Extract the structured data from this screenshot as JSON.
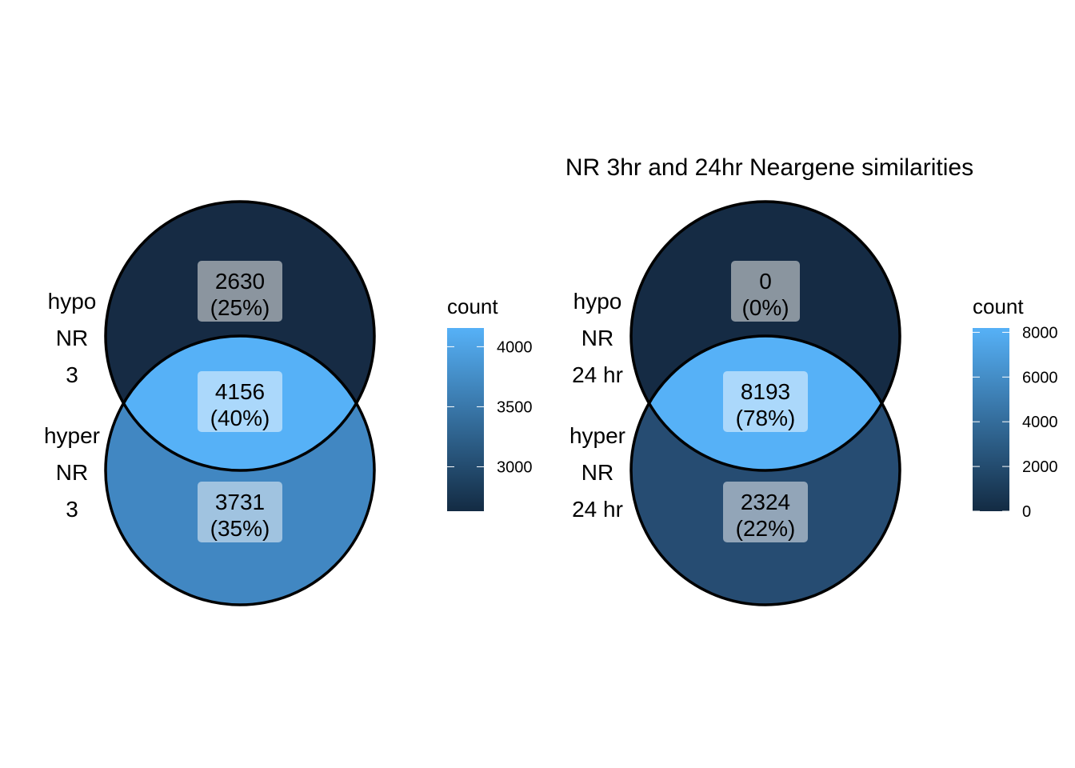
{
  "panels": [
    {
      "title": "",
      "sets": [
        {
          "label_lines": [
            "hypo",
            "NR",
            "3"
          ]
        },
        {
          "label_lines": [
            "hyper",
            "NR",
            "3"
          ]
        }
      ],
      "regions": [
        {
          "region": "hypo only",
          "count": "2630",
          "percent": "(25%)",
          "fill": "#162B44",
          "box": "#8B959F"
        },
        {
          "region": "both",
          "count": "4156",
          "percent": "(40%)",
          "fill": "#56B1F7",
          "box": "#ABD8FB"
        },
        {
          "region": "hyper only",
          "count": "3731",
          "percent": "(35%)",
          "fill": "#4187C2",
          "box": "#A0C3E0"
        }
      ],
      "legend": {
        "title": "count",
        "ticks": [
          {
            "label": "3000",
            "value": 3000
          },
          {
            "label": "3500",
            "value": 3500
          },
          {
            "label": "4000",
            "value": 4000
          }
        ],
        "min": 2630,
        "max": 4156,
        "color_low": "#132B43",
        "color_high": "#56B1F7"
      }
    },
    {
      "title": "NR 3hr and 24hr Neargene similarities",
      "sets": [
        {
          "label_lines": [
            "hypo",
            "NR",
            "24 hr"
          ]
        },
        {
          "label_lines": [
            "hyper",
            "NR",
            "24 hr"
          ]
        }
      ],
      "regions": [
        {
          "region": "hypo only",
          "count": "0",
          "percent": "(0%)",
          "fill": "#152B44",
          "box": "#8A959F"
        },
        {
          "region": "both",
          "count": "8193",
          "percent": "(78%)",
          "fill": "#56B1F7",
          "box": "#ABD8FB"
        },
        {
          "region": "hyper only",
          "count": "2324",
          "percent": "(22%)",
          "fill": "#264C72",
          "box": "#92A5B8"
        }
      ],
      "legend": {
        "title": "count",
        "ticks": [
          {
            "label": "0",
            "value": 0
          },
          {
            "label": "2000",
            "value": 2000
          },
          {
            "label": "4000",
            "value": 4000
          },
          {
            "label": "6000",
            "value": 6000
          },
          {
            "label": "8000",
            "value": 8000
          }
        ],
        "min": 0,
        "max": 8193,
        "color_low": "#132B43",
        "color_high": "#56B1F7"
      }
    }
  ]
}
